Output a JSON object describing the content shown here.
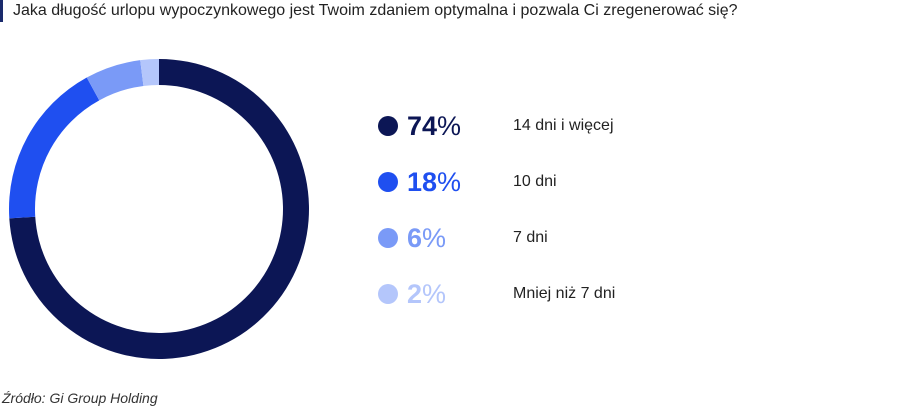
{
  "title": "Jaka długość urlopu wypoczynkowego jest Twoim zdaniem optymalna i pozwala Ci zregenerować się?",
  "source": "Źródło: Gi Group Holding",
  "chart_data": {
    "type": "pie",
    "donut": true,
    "unit": "%",
    "series": [
      {
        "name": "14 dni i więcej",
        "value": 74,
        "color": "#0c1655"
      },
      {
        "name": "10 dni",
        "value": 18,
        "color": "#1f4ff0"
      },
      {
        "name": "7 dni",
        "value": 6,
        "color": "#7a9af7"
      },
      {
        "name": "Mniej niż 7 dni",
        "value": 2,
        "color": "#b4c6fb"
      }
    ],
    "legend_position": "right"
  }
}
